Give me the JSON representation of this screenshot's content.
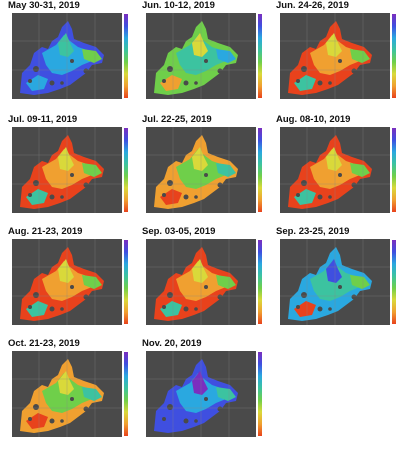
{
  "panels": [
    {
      "title": "May 30-31, 2019",
      "theme": "blue"
    },
    {
      "title": "Jun. 10-12, 2019",
      "theme": "green"
    },
    {
      "title": "Jun. 24-26, 2019",
      "theme": "hot"
    },
    {
      "title": "Jul. 09-11, 2019",
      "theme": "hot"
    },
    {
      "title": "Jul. 22-25, 2019",
      "theme": "warm"
    },
    {
      "title": "Aug. 08-10, 2019",
      "theme": "hot"
    },
    {
      "title": "Aug. 21-23, 2019",
      "theme": "hot"
    },
    {
      "title": "Sep. 03-05, 2019",
      "theme": "hot"
    },
    {
      "title": "Sep. 23-25, 2019",
      "theme": "cool"
    },
    {
      "title": "Oct. 21-23, 2019",
      "theme": "warm"
    },
    {
      "title": "Nov. 20, 2019",
      "theme": "cold"
    }
  ],
  "palette": {
    "land": "#4a4a4a",
    "background": "#ffffff",
    "scale": [
      "#7b2fbf",
      "#3f4fe0",
      "#2aa8e0",
      "#3cc3a0",
      "#6fcf4a",
      "#d9d93a",
      "#f0a030",
      "#e8421c"
    ]
  }
}
